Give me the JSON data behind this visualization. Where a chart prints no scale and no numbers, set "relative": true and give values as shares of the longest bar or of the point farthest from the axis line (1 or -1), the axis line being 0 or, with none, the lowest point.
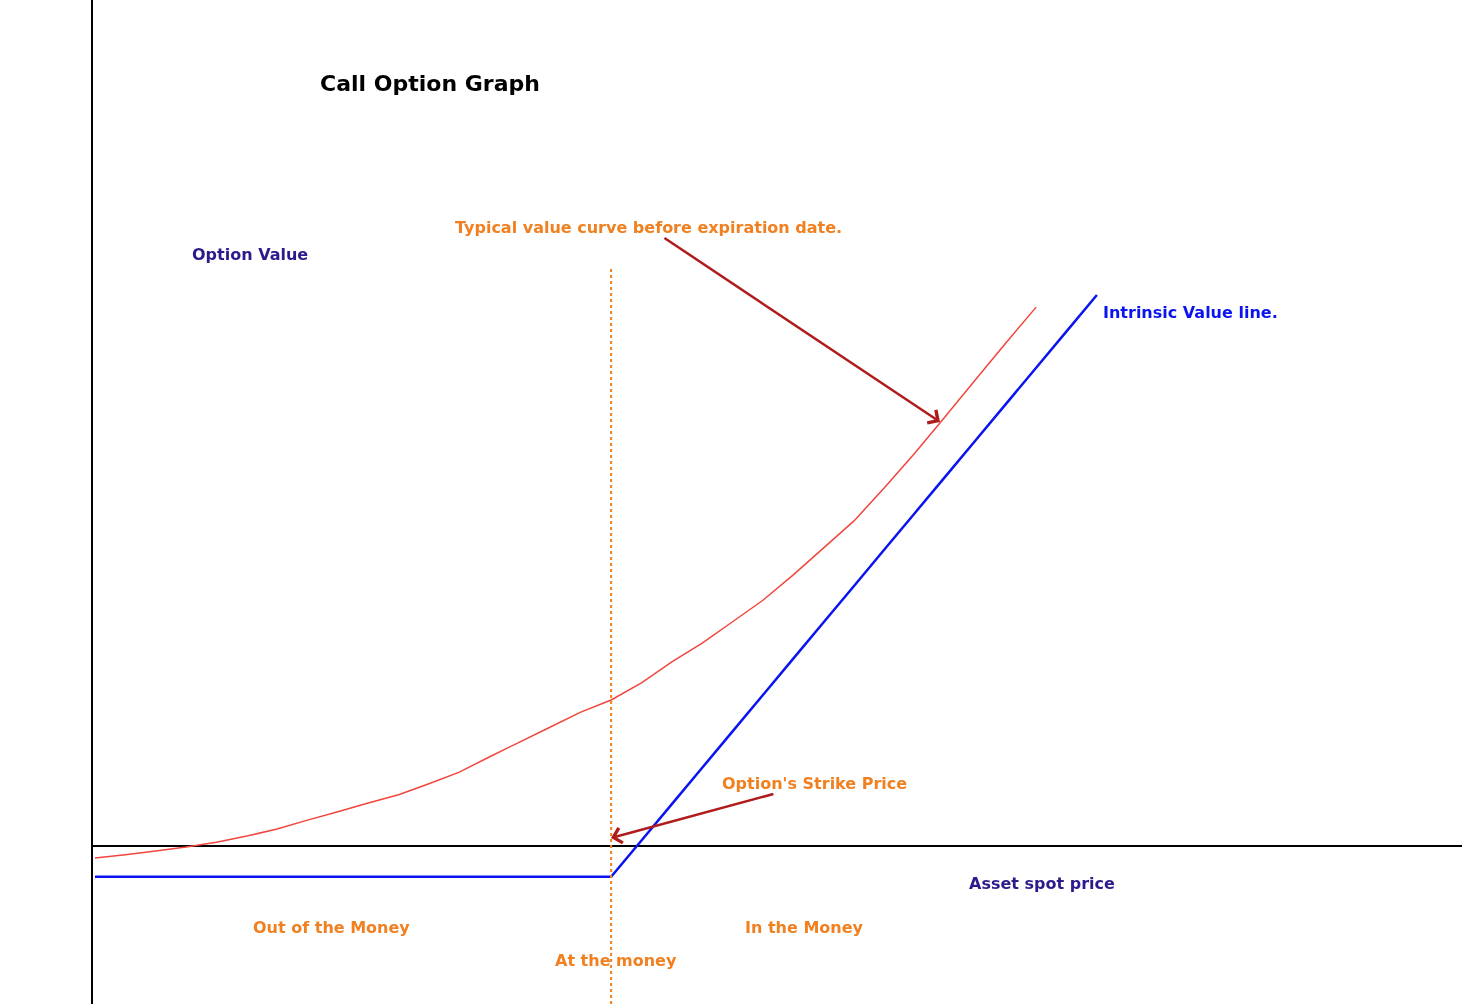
{
  "chart_data": {
    "type": "line",
    "title": "Call Option Graph",
    "xlabel": "Asset spot price",
    "ylabel": "Option Value",
    "relative": true,
    "legend": false,
    "categories": [
      null,
      null,
      null,
      null,
      null,
      null,
      null,
      null,
      null,
      null,
      null,
      null,
      null,
      null,
      null,
      null,
      null,
      null,
      null,
      null,
      null,
      null,
      null,
      null,
      null,
      null,
      null,
      null,
      null,
      null,
      null,
      null,
      null,
      null
    ],
    "series": [
      {
        "color": "#f0463c",
        "values": [
          -0.022,
          -0.016,
          -0.009,
          -0.002,
          0.007,
          0.018,
          0.031,
          0.047,
          0.062,
          0.078,
          0.093,
          0.113,
          0.134,
          0.162,
          0.189,
          0.216,
          0.243,
          0.265,
          0.296,
          0.334,
          0.368,
          0.407,
          0.446,
          0.492,
          0.541,
          0.59,
          0.65,
          0.713,
          0.779,
          0.846,
          0.913,
          0.978,
          null,
          null
        ]
      },
      {
        "name": "Intrinsic Value line.",
        "color": "#0a14f0",
        "values": [
          -0.056,
          -0.056,
          -0.056,
          -0.056,
          -0.056,
          -0.056,
          -0.056,
          -0.056,
          -0.056,
          -0.056,
          -0.056,
          -0.056,
          -0.056,
          -0.056,
          -0.056,
          -0.056,
          -0.056,
          -0.056,
          0.01,
          0.076,
          0.142,
          0.208,
          0.274,
          0.34,
          0.406,
          0.472,
          0.538,
          0.604,
          0.67,
          0.736,
          0.802,
          0.868,
          0.934,
          1.0
        ]
      }
    ],
    "annotations": [
      "Typical value curve before expiration date.",
      "Option's Strike Price",
      "Out of the Money",
      "In the Money",
      "At the money"
    ]
  }
}
